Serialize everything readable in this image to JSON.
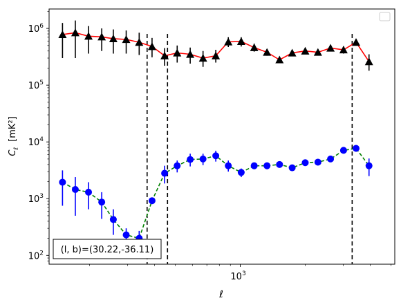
{
  "chart_data": {
    "type": "scatter",
    "xscale": "log",
    "yscale": "log",
    "xlim": [
      130,
      5200
    ],
    "ylim": [
      70,
      2200000
    ],
    "xlabel": "ℓ",
    "ylabel_main": "C",
    "ylabel_sub": "ℓ",
    "ylabel_unit": "[mK²]",
    "x_ticks": [
      {
        "value": 1000,
        "base": "10",
        "exp": "3"
      }
    ],
    "y_ticks": [
      {
        "value": 100,
        "base": "10",
        "exp": "2"
      },
      {
        "value": 1000,
        "base": "10",
        "exp": "3"
      },
      {
        "value": 10000,
        "base": "10",
        "exp": "4"
      },
      {
        "value": 100000,
        "base": "10",
        "exp": "5"
      },
      {
        "value": 1000000,
        "base": "10",
        "exp": "6"
      }
    ],
    "vlines": [
      370,
      460,
      3300
    ],
    "annotation": "(l, b)=(30.22,-36.11)",
    "legend": "upper right (empty)",
    "series": [
      {
        "marker": "triangle",
        "marker_color": "#000000",
        "line_color": "#ff0000",
        "line_style": "solid",
        "errorbar_color": "#000000",
        "points": [
          {
            "x": 150,
            "y": 780000,
            "lo": 300000,
            "hi": 1250000
          },
          {
            "x": 172,
            "y": 840000,
            "lo": 300000,
            "hi": 1380000
          },
          {
            "x": 198,
            "y": 730000,
            "lo": 360000,
            "hi": 1100000
          },
          {
            "x": 228,
            "y": 710000,
            "lo": 400000,
            "hi": 1000000
          },
          {
            "x": 258,
            "y": 660000,
            "lo": 360000,
            "hi": 960000
          },
          {
            "x": 296,
            "y": 640000,
            "lo": 360000,
            "hi": 920000
          },
          {
            "x": 340,
            "y": 570000,
            "lo": 340000,
            "hi": 840000
          },
          {
            "x": 390,
            "y": 480000,
            "lo": 310000,
            "hi": 680000
          },
          {
            "x": 446,
            "y": 330000,
            "lo": 220000,
            "hi": 450000
          },
          {
            "x": 510,
            "y": 370000,
            "lo": 250000,
            "hi": 500000
          },
          {
            "x": 586,
            "y": 350000,
            "lo": 240000,
            "hi": 460000
          },
          {
            "x": 672,
            "y": 300000,
            "lo": 210000,
            "hi": 400000
          },
          {
            "x": 770,
            "y": 330000,
            "lo": 250000,
            "hi": 420000
          },
          {
            "x": 880,
            "y": 580000,
            "lo": 470000,
            "hi": 700000
          },
          {
            "x": 1010,
            "y": 590000,
            "lo": 480000,
            "hi": 700000
          },
          {
            "x": 1160,
            "y": 460000,
            "lo": 390000,
            "hi": 540000
          },
          {
            "x": 1330,
            "y": 380000,
            "lo": 330000,
            "hi": 430000
          },
          {
            "x": 1520,
            "y": 280000,
            "lo": 245000,
            "hi": 315000
          },
          {
            "x": 1740,
            "y": 370000,
            "lo": 330000,
            "hi": 410000
          },
          {
            "x": 2000,
            "y": 400000,
            "lo": 360000,
            "hi": 440000
          },
          {
            "x": 2290,
            "y": 380000,
            "lo": 340000,
            "hi": 420000
          },
          {
            "x": 2620,
            "y": 450000,
            "lo": 400000,
            "hi": 510000
          },
          {
            "x": 3010,
            "y": 420000,
            "lo": 360000,
            "hi": 480000
          },
          {
            "x": 3440,
            "y": 570000,
            "lo": 500000,
            "hi": 650000
          },
          {
            "x": 3950,
            "y": 260000,
            "lo": 180000,
            "hi": 350000
          }
        ]
      },
      {
        "marker": "circle",
        "marker_color": "#0000ff",
        "line_color": "#008000",
        "line_style": "dashed",
        "errorbar_color": "#0000ff",
        "points": [
          {
            "x": 150,
            "y": 1950,
            "lo": 750,
            "hi": 3150
          },
          {
            "x": 172,
            "y": 1450,
            "lo": 500,
            "hi": 2400
          },
          {
            "x": 198,
            "y": 1300,
            "lo": 650,
            "hi": 1950
          },
          {
            "x": 228,
            "y": 870,
            "lo": 440,
            "hi": 1300
          },
          {
            "x": 258,
            "y": 430,
            "lo": 230,
            "hi": 650
          },
          {
            "x": 296,
            "y": 230,
            "lo": 150,
            "hi": 300
          },
          {
            "x": 340,
            "y": 200,
            "lo": 130,
            "hi": 270
          },
          {
            "x": 390,
            "y": 920,
            "lo": 850,
            "hi": 990
          },
          {
            "x": 446,
            "y": 2800,
            "lo": 1850,
            "hi": 3800
          },
          {
            "x": 510,
            "y": 3800,
            "lo": 2900,
            "hi": 4700
          },
          {
            "x": 586,
            "y": 4900,
            "lo": 3700,
            "hi": 6200
          },
          {
            "x": 672,
            "y": 5000,
            "lo": 3900,
            "hi": 6200
          },
          {
            "x": 770,
            "y": 5700,
            "lo": 4500,
            "hi": 7000
          },
          {
            "x": 880,
            "y": 3800,
            "lo": 3000,
            "hi": 4700
          },
          {
            "x": 1010,
            "y": 2900,
            "lo": 2400,
            "hi": 3400
          },
          {
            "x": 1160,
            "y": 3800,
            "lo": 3300,
            "hi": 4300
          },
          {
            "x": 1330,
            "y": 3800,
            "lo": 3300,
            "hi": 4300
          },
          {
            "x": 1520,
            "y": 4000,
            "lo": 3550,
            "hi": 4450
          },
          {
            "x": 1740,
            "y": 3500,
            "lo": 3150,
            "hi": 3850
          },
          {
            "x": 2000,
            "y": 4300,
            "lo": 3900,
            "hi": 4700
          },
          {
            "x": 2290,
            "y": 4400,
            "lo": 4000,
            "hi": 4800
          },
          {
            "x": 2620,
            "y": 5000,
            "lo": 4600,
            "hi": 5400
          },
          {
            "x": 3010,
            "y": 7100,
            "lo": 6500,
            "hi": 7800
          },
          {
            "x": 3440,
            "y": 7700,
            "lo": 6700,
            "hi": 8700
          },
          {
            "x": 3950,
            "y": 3800,
            "lo": 2500,
            "hi": 5100
          }
        ]
      }
    ]
  }
}
